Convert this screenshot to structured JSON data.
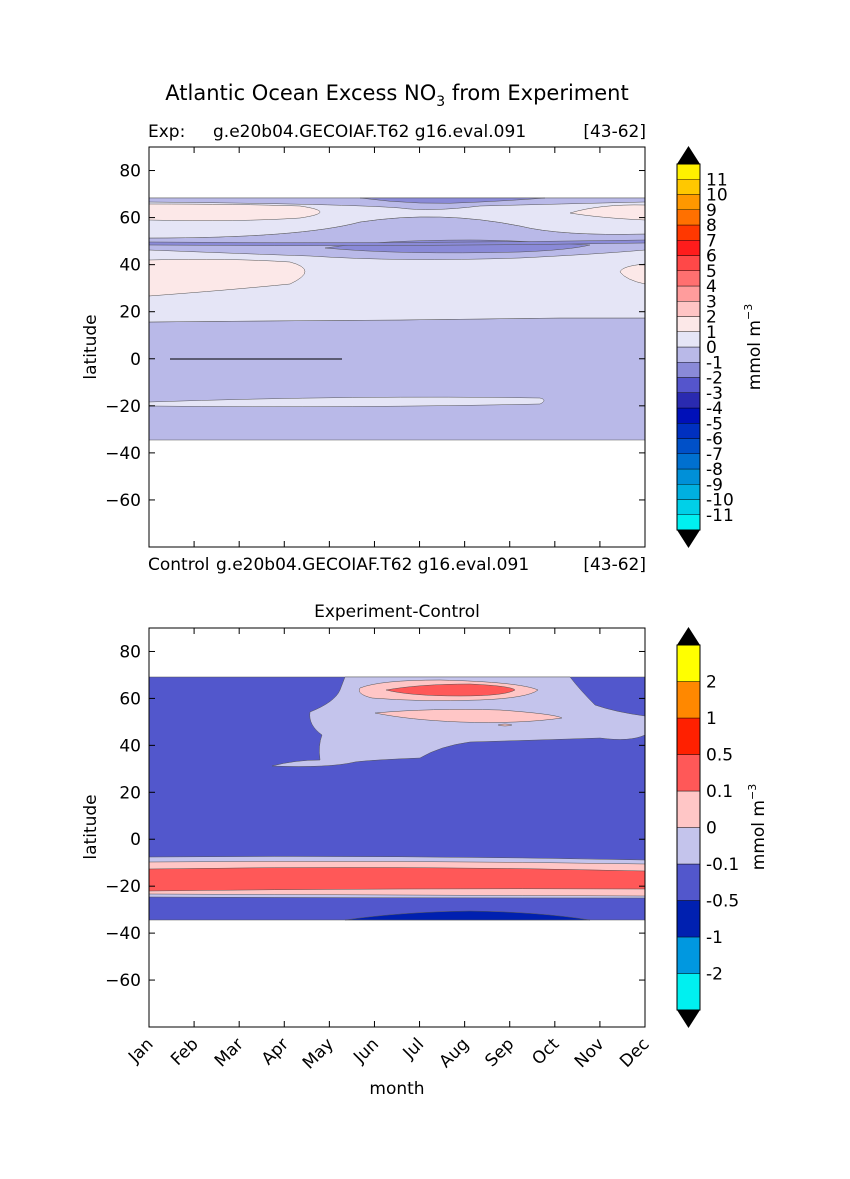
{
  "figure": {
    "title_prefix": "Atlantic Ocean Excess NO",
    "title_subscript": "3",
    "title_suffix": " from Experiment"
  },
  "chart_data": [
    {
      "type": "heatmap",
      "panel": "experiment",
      "subtitle_left": "Exp:",
      "subtitle_case": "g.e20b04.GECOIAF.T62 g16.eval.091",
      "subtitle_years": "[43-62]",
      "caption_left": "Control",
      "caption_case": "g.e20b04.GECOIAF.T62 g16.eval.091",
      "caption_years": "[43-62]",
      "ylabel": "latitude",
      "xlim": [
        0,
        11
      ],
      "ylim": [
        -80,
        90
      ],
      "yticks": [
        80,
        60,
        40,
        20,
        0,
        -20,
        -40,
        -60
      ],
      "xticks": [
        "",
        "",
        "",
        "",
        "",
        "",
        "",
        "",
        "",
        "",
        "",
        ""
      ],
      "colorbar": {
        "label": "mmol m",
        "label_sup": "−3",
        "levels": [
          "-11",
          "-10",
          "-9",
          "-8",
          "-7",
          "-6",
          "-5",
          "-4",
          "-3",
          "-2",
          "-1",
          "0",
          "1",
          "2",
          "3",
          "4",
          "5",
          "6",
          "7",
          "8",
          "9",
          "10",
          "11"
        ],
        "colors": [
          "#00f0f0",
          "#00d0e8",
          "#00b0e0",
          "#0090d8",
          "#0070d0",
          "#0050c8",
          "#0030c0",
          "#0010b8",
          "#2a2ab0",
          "#5555cc",
          "#8a8ad8",
          "#b9b9e8",
          "#e5e5f6",
          "#fce8e8",
          "#ffc4c4",
          "#ff9c9c",
          "#ff7070",
          "#ff4848",
          "#ff1c1c",
          "#ff3800",
          "#ff7000",
          "#ff9800",
          "#ffc800",
          "#fff000"
        ]
      },
      "regions": [
        {
          "level": "-2",
          "color": "#b9b9e8",
          "lat_range": [
            -35,
            18
          ],
          "months": [
            0,
            11
          ]
        },
        {
          "level": "-1",
          "color": "#e5e5f6",
          "lat_range": [
            17,
            50
          ],
          "months": [
            0,
            11
          ]
        },
        {
          "level": "0",
          "color": "#fce8e8",
          "lat_range": [
            26,
            42
          ],
          "months": [
            0,
            3.4
          ]
        },
        {
          "level": "-1",
          "color": "#e5e5f6",
          "lat_range": [
            -19,
            -16
          ],
          "months": [
            0,
            8.7
          ]
        },
        {
          "level": "-3",
          "color": "#8a8ad8",
          "lat_range": [
            44,
            50
          ],
          "months": [
            3.8,
            9.5
          ]
        },
        {
          "level": "-1",
          "color": "#e5e5f6",
          "lat_range": [
            52,
            69
          ],
          "months": [
            0,
            11
          ]
        },
        {
          "level": "0",
          "color": "#fce8e8",
          "lat_range": [
            57,
            64
          ],
          "months": [
            0,
            3.3
          ]
        },
        {
          "level": "0",
          "color": "#fce8e8",
          "lat_range": [
            57,
            64
          ],
          "months": [
            9.4,
            11
          ]
        }
      ]
    },
    {
      "type": "heatmap",
      "panel": "difference",
      "title": "Experiment-Control",
      "ylabel": "latitude",
      "xlabel": "month",
      "xlim": [
        0,
        11
      ],
      "ylim": [
        -80,
        90
      ],
      "yticks": [
        80,
        60,
        40,
        20,
        0,
        -20,
        -40,
        -60
      ],
      "xticks": [
        "Jan",
        "Feb",
        "Mar",
        "Apr",
        "May",
        "Jun",
        "Jul",
        "Aug",
        "Sep",
        "Oct",
        "Nov",
        "Dec"
      ],
      "colorbar": {
        "label": "mmol m",
        "label_sup": "−3",
        "levels": [
          "-2",
          "-1",
          "-0.5",
          "-0.1",
          "0",
          "0.1",
          "0.5",
          "1",
          "2"
        ],
        "colors": [
          "#00f0f0",
          "#0098e0",
          "#0020b0",
          "#5257cc",
          "#c4c4ec",
          "#ffc6c6",
          "#ff5858",
          "#ff2000",
          "#ff8800",
          "#ffff00"
        ]
      },
      "regions": [
        {
          "level": "-0.5",
          "color": "#5257cc",
          "lat_range": [
            -34,
            69
          ],
          "months": [
            0,
            11
          ]
        },
        {
          "level": "-0.1",
          "color": "#c4c4ec",
          "lat_range": [
            30,
            69
          ],
          "months": [
            2.7,
            10.8
          ]
        },
        {
          "level": "0",
          "color": "#ffc6c6",
          "lat_range": [
            47,
            67
          ],
          "months": [
            4.5,
            9
          ]
        },
        {
          "level": "0.1",
          "color": "#ff5858",
          "lat_range": [
            61,
            66
          ],
          "months": [
            5.3,
            8.1
          ]
        },
        {
          "level": "-0.1",
          "color": "#c4c4ec",
          "lat_range": [
            -26,
            -8
          ],
          "months": [
            0,
            11
          ]
        },
        {
          "level": "0",
          "color": "#ffc6c6",
          "lat_range": [
            -25,
            -9
          ],
          "months": [
            0,
            11
          ]
        },
        {
          "level": "0.1",
          "color": "#ff5858",
          "lat_range": [
            -22,
            -11
          ],
          "months": [
            0,
            11
          ]
        },
        {
          "level": "-1",
          "color": "#0020b0",
          "lat_range": [
            -34,
            -30
          ],
          "months": [
            4.5,
            9.7
          ]
        }
      ]
    }
  ]
}
